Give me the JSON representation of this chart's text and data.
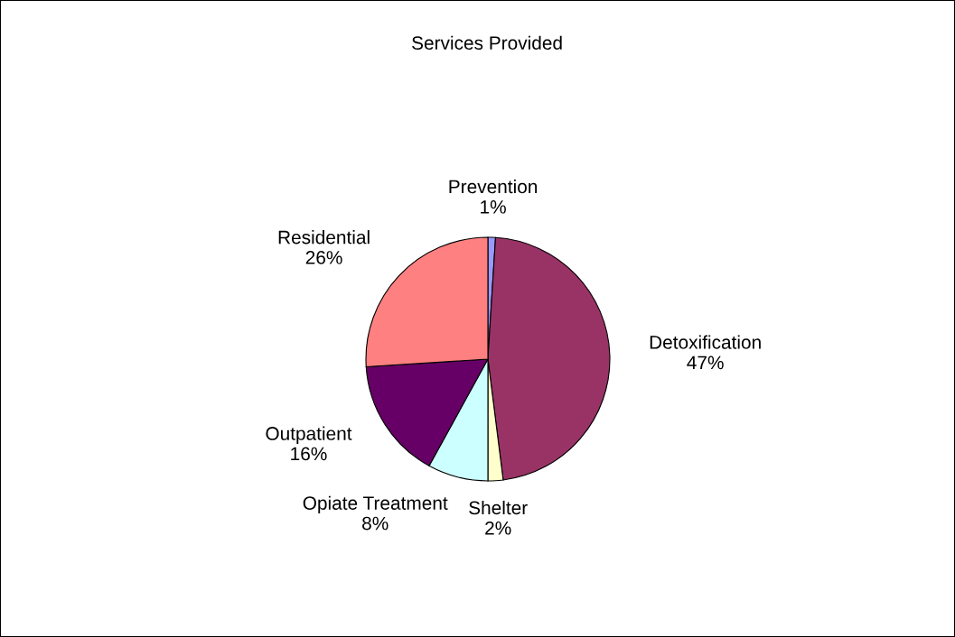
{
  "chart_data": {
    "type": "pie",
    "title": "Services Provided",
    "categories": [
      "Prevention",
      "Detoxification",
      "Shelter",
      "Opiate Treatment",
      "Outpatient",
      "Residential"
    ],
    "values": [
      1,
      47,
      2,
      8,
      16,
      26
    ],
    "value_labels": [
      "1%",
      "47%",
      "2%",
      "8%",
      "16%",
      "26%"
    ],
    "colors": [
      "#9999ff",
      "#993366",
      "#ffffcc",
      "#ccffff",
      "#660066",
      "#ff8080"
    ],
    "legend": false
  }
}
